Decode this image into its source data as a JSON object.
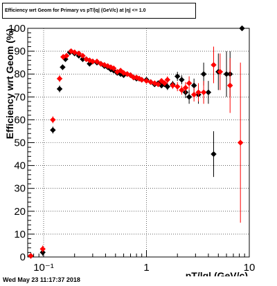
{
  "chart_data": {
    "type": "scatter",
    "title": "Efficiency wrt Geom for Primary vs pT/|q| (GeV/c) at |η| <= 1.0",
    "xlabel": "pT/|q| (GeV/c)",
    "ylabel": "Efficiency wrt Geom (%)",
    "xscale": "log",
    "xlim": [
      0.07,
      10
    ],
    "ylim": [
      0,
      100
    ],
    "grid": true,
    "x_ticks": [
      0.1,
      1,
      10
    ],
    "x_tick_labels": [
      "10⁻¹",
      "1",
      "10"
    ],
    "y_ticks": [
      0,
      10,
      20,
      30,
      40,
      50,
      60,
      70,
      80,
      90,
      100
    ],
    "series": [
      {
        "color": "#000000",
        "x": [
          0.075,
          0.098,
          0.123,
          0.143,
          0.153,
          0.163,
          0.18,
          0.2,
          0.22,
          0.24,
          0.26,
          0.28,
          0.3,
          0.33,
          0.36,
          0.39,
          0.42,
          0.45,
          0.48,
          0.52,
          0.56,
          0.6,
          0.65,
          0.7,
          0.75,
          0.8,
          0.85,
          0.9,
          1.0,
          1.1,
          1.2,
          1.3,
          1.4,
          1.5,
          1.6,
          1.8,
          2.0,
          2.2,
          2.4,
          2.6,
          2.9,
          3.2,
          3.6,
          4.0,
          4.5,
          5.0,
          6.0,
          6.5,
          8.5
        ],
        "y": [
          0.5,
          2,
          55.5,
          73.5,
          83,
          86.5,
          89.5,
          89,
          88,
          86.5,
          86.5,
          84.5,
          85.5,
          85,
          84.5,
          83.5,
          83,
          82,
          81.5,
          80.5,
          80,
          79.5,
          80,
          79.5,
          78.5,
          78,
          78,
          77.5,
          77.5,
          76.5,
          75.5,
          76,
          75,
          75.5,
          74.5,
          75.5,
          79,
          77.5,
          72,
          70,
          75,
          71,
          80,
          72,
          45,
          81,
          80,
          80,
          100
        ],
        "yerr": [
          0,
          1.5,
          1.5,
          1.5,
          1.2,
          1,
          1,
          1,
          1,
          1,
          1,
          1,
          1,
          1,
          1,
          1,
          1,
          1,
          1,
          1,
          1,
          1,
          1,
          1,
          1,
          1,
          1,
          1,
          1,
          1,
          1,
          1,
          1,
          1,
          1.5,
          1.5,
          2,
          2,
          2.5,
          3,
          3,
          4,
          5,
          5,
          10,
          8,
          10,
          10,
          0
        ]
      },
      {
        "color": "#ff0000",
        "x": [
          0.075,
          0.098,
          0.123,
          0.143,
          0.155,
          0.167,
          0.185,
          0.2,
          0.22,
          0.24,
          0.26,
          0.28,
          0.3,
          0.33,
          0.36,
          0.39,
          0.42,
          0.45,
          0.48,
          0.52,
          0.56,
          0.6,
          0.65,
          0.7,
          0.75,
          0.8,
          0.85,
          0.9,
          1.0,
          1.1,
          1.2,
          1.3,
          1.4,
          1.5,
          1.6,
          1.8,
          2.0,
          2.2,
          2.4,
          2.6,
          2.9,
          3.2,
          3.6,
          4.5,
          5.2,
          6.5,
          8.2
        ],
        "y": [
          0.5,
          3.5,
          60,
          78,
          87.5,
          88,
          90,
          89.5,
          89,
          88,
          86.5,
          86,
          85.5,
          85.5,
          84.5,
          84,
          83.5,
          83,
          82.5,
          81,
          81.5,
          80.5,
          80,
          79.5,
          78.5,
          78.5,
          78,
          77.5,
          77,
          76.5,
          76,
          75.5,
          77,
          76,
          77.5,
          75,
          74.5,
          73,
          74,
          76,
          71,
          72,
          72,
          84,
          81,
          75,
          50
        ],
        "yerr": [
          0,
          1.5,
          1.5,
          1.5,
          1.2,
          1,
          1,
          1,
          1,
          1,
          1,
          1,
          1,
          1,
          1,
          1,
          1,
          1,
          1,
          1,
          1,
          1,
          1,
          1,
          1,
          1,
          1,
          1,
          1,
          1,
          1,
          1,
          1,
          1,
          1.5,
          1.5,
          2,
          2,
          2.5,
          3,
          3,
          4,
          5,
          8,
          8,
          12,
          35
        ]
      }
    ]
  },
  "footer": {
    "timestamp": "Wed May 23 11:17:37 2018"
  }
}
